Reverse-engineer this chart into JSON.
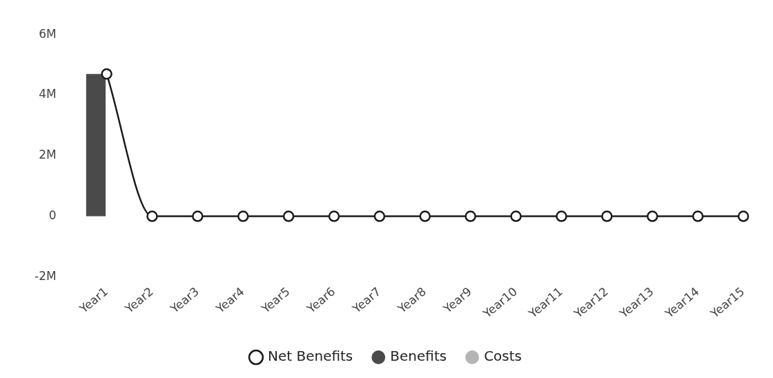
{
  "chart_data": {
    "type": "bar",
    "categories": [
      "Year1",
      "Year2",
      "Year3",
      "Year4",
      "Year5",
      "Year6",
      "Year7",
      "Year8",
      "Year9",
      "Year10",
      "Year11",
      "Year12",
      "Year13",
      "Year14",
      "Year15"
    ],
    "series": [
      {
        "name": "Benefits",
        "color": "#4a4a4a",
        "values": [
          4700000,
          0,
          0,
          0,
          0,
          0,
          0,
          0,
          0,
          0,
          0,
          0,
          0,
          0,
          0
        ]
      },
      {
        "name": "Costs",
        "color": "#b4b4b4",
        "values": [
          0,
          0,
          0,
          0,
          0,
          0,
          0,
          0,
          0,
          0,
          0,
          0,
          0,
          0,
          0
        ]
      },
      {
        "name": "Net Benefits",
        "type": "line",
        "color": "#1a1a1a",
        "values": [
          4700000,
          0,
          0,
          0,
          0,
          0,
          0,
          0,
          0,
          0,
          0,
          0,
          0,
          0,
          0
        ]
      }
    ],
    "ylim": [
      -2000000,
      6000000
    ],
    "yticks": [
      {
        "value": -2000000,
        "label": "-2M"
      },
      {
        "value": 0,
        "label": "0"
      },
      {
        "value": 2000000,
        "label": "2M"
      },
      {
        "value": 4000000,
        "label": "4M"
      },
      {
        "value": 6000000,
        "label": "6M"
      }
    ],
    "grid": false,
    "legend": "bottom",
    "marker": "circle",
    "line_style": "solid"
  }
}
